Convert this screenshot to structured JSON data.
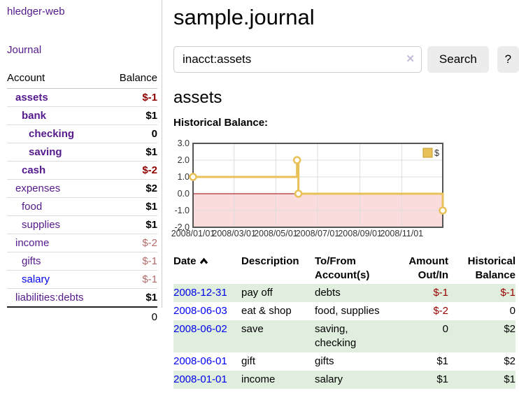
{
  "app": {
    "brand": "hledger-web",
    "nav_journal": "Journal"
  },
  "sidebar": {
    "headers": {
      "account": "Account",
      "balance": "Balance"
    },
    "accounts": [
      {
        "name": "assets",
        "balance": "$-1"
      },
      {
        "name": "bank",
        "balance": "$1"
      },
      {
        "name": "checking",
        "balance": "0"
      },
      {
        "name": "saving",
        "balance": "$1"
      },
      {
        "name": "cash",
        "balance": "$-2"
      },
      {
        "name": "expenses",
        "balance": "$2"
      },
      {
        "name": "food",
        "balance": "$1"
      },
      {
        "name": "supplies",
        "balance": "$1"
      },
      {
        "name": "income",
        "balance": "$-2"
      },
      {
        "name": "gifts",
        "balance": "$-1"
      },
      {
        "name": "salary",
        "balance": "$-1"
      },
      {
        "name": "liabilities:debts",
        "balance": "$1"
      }
    ],
    "total": "0"
  },
  "header": {
    "title": "sample.journal"
  },
  "search": {
    "value": "inacct:assets",
    "clear_icon": "✕",
    "button_label": "Search",
    "help_label": "?"
  },
  "account_page": {
    "heading": "assets",
    "chart_title": "Historical Balance:"
  },
  "chart_data": {
    "type": "line",
    "step": true,
    "title": "Historical Balance",
    "legend": [
      {
        "label": "$",
        "color": "#e8c158"
      }
    ],
    "x": [
      "2008/01/01",
      "2008/06/01",
      "2008/06/03",
      "2008/12/31"
    ],
    "values": [
      1.0,
      2.0,
      0.0,
      -1.0
    ],
    "ylim": [
      -2.0,
      3.0
    ],
    "yticks": [
      "3.0",
      "2.0",
      "1.0",
      "0.0",
      "-1.0",
      "-2.0"
    ],
    "xticks": [
      "2008/01/01",
      "2008/03/01",
      "2008/05/01",
      "2008/07/01",
      "2008/09/01",
      "2008/11/01"
    ],
    "x_range": [
      "2008/01/01",
      "2008/12/31"
    ],
    "grid": true,
    "legend_position": "top-right",
    "negative_region_color": "#fadcdc",
    "zero_line_color": "#990000",
    "line_color": "#e8c158"
  },
  "register": {
    "headers": {
      "date": "Date",
      "description": "Description",
      "accounts": "To/From Account(s)",
      "amount": "Amount Out/In",
      "balance": "Historical Balance"
    },
    "rows": [
      {
        "date": "2008-12-31",
        "description": "pay off",
        "accounts": "debts",
        "amount": "$-1",
        "balance": "$-1"
      },
      {
        "date": "2008-06-03",
        "description": "eat & shop",
        "accounts": "food, supplies",
        "amount": "$-2",
        "balance": "0"
      },
      {
        "date": "2008-06-02",
        "description": "save",
        "accounts": "saving, checking",
        "amount": "0",
        "balance": "$2"
      },
      {
        "date": "2008-06-01",
        "description": "gift",
        "accounts": "gifts",
        "amount": "$1",
        "balance": "$2"
      },
      {
        "date": "2008-01-01",
        "description": "income",
        "accounts": "salary",
        "amount": "$1",
        "balance": "$1"
      }
    ]
  }
}
